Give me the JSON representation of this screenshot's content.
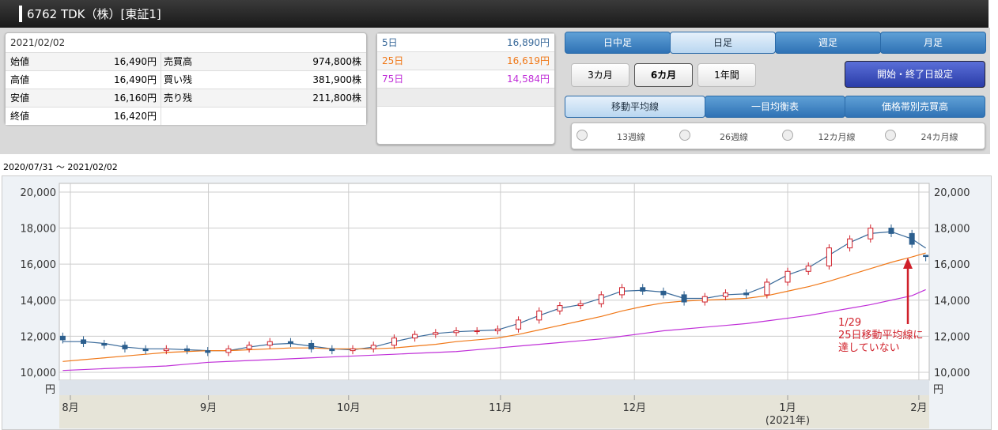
{
  "header": {
    "title": "6762 TDK（株）[東証1]"
  },
  "quote": {
    "date": "2021/02/02",
    "rows": [
      [
        "始値",
        "16,490円",
        "売買高",
        "974,800株"
      ],
      [
        "高値",
        "16,490円",
        "買い残",
        "381,900株"
      ],
      [
        "安値",
        "16,160円",
        "売り残",
        "211,800株"
      ],
      [
        "終値",
        "16,420円"
      ]
    ]
  },
  "tabs": [
    "日中足",
    "日足",
    "週足",
    "月足"
  ],
  "periods": [
    "3カ月",
    "6カ月",
    "1年間"
  ],
  "range_button": "開始・終了日設定",
  "indicator_tabs": [
    "移動平均線",
    "一目均衡表",
    "価格帯別売買高"
  ],
  "checks": [
    "13週線",
    "26週線",
    "12カ月線",
    "24カ月線"
  ],
  "range": "2020/07/31 〜 2021/02/02",
  "chart_data": {
    "type": "candlestick",
    "x": [
      0,
      3,
      6,
      9,
      12,
      15,
      18,
      21,
      24,
      27,
      30,
      33,
      36,
      39,
      42,
      45,
      48,
      51,
      54,
      57,
      60,
      63,
      66,
      69,
      72,
      75,
      78,
      81,
      84,
      87,
      90,
      93,
      96,
      99,
      102,
      105,
      108,
      111,
      114,
      117,
      120,
      123,
      125
    ],
    "open": [
      12000,
      11800,
      11600,
      11500,
      11300,
      11200,
      11300,
      11200,
      11100,
      11300,
      11500,
      11700,
      11600,
      11300,
      11200,
      11300,
      11500,
      11900,
      12100,
      12200,
      12300,
      12300,
      12400,
      12900,
      13400,
      13700,
      13800,
      14300,
      14700,
      14500,
      14300,
      13900,
      14200,
      14400,
      14300,
      15000,
      15600,
      15900,
      16900,
      17400,
      18000,
      17700,
      16490
    ],
    "high": [
      12200,
      12000,
      11800,
      11700,
      11500,
      11500,
      11500,
      11400,
      11500,
      11700,
      11900,
      11900,
      11800,
      11500,
      11500,
      11700,
      12100,
      12300,
      12400,
      12500,
      12500,
      12600,
      13100,
      13600,
      13900,
      14000,
      14500,
      14900,
      14900,
      14700,
      14500,
      14400,
      14600,
      14600,
      15200,
      15800,
      16100,
      17100,
      17600,
      18200,
      18200,
      17900,
      16490
    ],
    "low": [
      11600,
      11400,
      11300,
      11100,
      11000,
      11000,
      11000,
      10900,
      10900,
      11100,
      11300,
      11400,
      11100,
      11000,
      11000,
      11100,
      11300,
      11700,
      11900,
      12000,
      12100,
      12100,
      12200,
      12700,
      13200,
      13500,
      13600,
      14100,
      14300,
      14100,
      13700,
      13700,
      14000,
      14100,
      14100,
      14800,
      15400,
      15700,
      16700,
      17200,
      17500,
      16900,
      16160
    ],
    "close": [
      11800,
      11600,
      11500,
      11300,
      11200,
      11300,
      11200,
      11100,
      11300,
      11500,
      11700,
      11600,
      11300,
      11200,
      11300,
      11500,
      11900,
      12100,
      12200,
      12300,
      12300,
      12400,
      12900,
      13400,
      13700,
      13800,
      14300,
      14700,
      14500,
      14300,
      13900,
      14200,
      14400,
      14300,
      15000,
      15600,
      15900,
      16900,
      17400,
      18000,
      17700,
      17100,
      16420
    ],
    "up_color": "#d0202a",
    "down_color": "#2c5f8e",
    "series": [
      {
        "name": "5日",
        "color": "#3a6a9a",
        "last_label": "16,890円",
        "values": [
          11700,
          11700,
          11600,
          11400,
          11300,
          11300,
          11250,
          11200,
          11200,
          11400,
          11550,
          11600,
          11450,
          11300,
          11250,
          11400,
          11700,
          11950,
          12150,
          12250,
          12300,
          12350,
          12700,
          13150,
          13550,
          13750,
          14100,
          14500,
          14550,
          14450,
          14100,
          14100,
          14300,
          14350,
          14800,
          15400,
          15800,
          16500,
          17200,
          17700,
          17800,
          17400,
          16890
        ]
      },
      {
        "name": "25日",
        "color": "#f07818",
        "last_label": "16,619円",
        "values": [
          10600,
          10700,
          10800,
          10900,
          11000,
          11100,
          11150,
          11200,
          11200,
          11250,
          11300,
          11350,
          11350,
          11300,
          11300,
          11300,
          11350,
          11450,
          11550,
          11700,
          11800,
          11900,
          12100,
          12350,
          12600,
          12850,
          13100,
          13400,
          13650,
          13850,
          13950,
          14000,
          14050,
          14100,
          14250,
          14500,
          14750,
          15050,
          15400,
          15750,
          16100,
          16400,
          16619
        ]
      },
      {
        "name": "75日",
        "color": "#c030d8",
        "last_label": "14,584円",
        "values": [
          10100,
          10150,
          10200,
          10250,
          10300,
          10350,
          10450,
          10550,
          10600,
          10650,
          10700,
          10750,
          10800,
          10850,
          10900,
          10950,
          11000,
          11050,
          11100,
          11150,
          11250,
          11350,
          11450,
          11550,
          11650,
          11750,
          11850,
          12000,
          12150,
          12300,
          12400,
          12500,
          12600,
          12700,
          12850,
          13000,
          13150,
          13350,
          13550,
          13750,
          14000,
          14250,
          14584
        ]
      }
    ],
    "xlim": [
      -0.5,
      125.5
    ],
    "xticks": [
      {
        "value": 1.1,
        "label": "8月"
      },
      {
        "value": 21.1,
        "label": "9月"
      },
      {
        "value": 41.4,
        "label": "10月"
      },
      {
        "value": 63.4,
        "label": "11月"
      },
      {
        "value": 82.8,
        "label": "12月"
      },
      {
        "value": 105,
        "label": "1月"
      },
      {
        "value": 124,
        "label": "2月"
      }
    ],
    "year_label": "(2021年)",
    "ylim": [
      9560,
      20480
    ],
    "yticks": [
      {
        "value": 10000,
        "label": "10,000"
      },
      {
        "value": 12000,
        "label": "12,000"
      },
      {
        "value": 14000,
        "label": "14,000"
      },
      {
        "value": 16000,
        "label": "16,000"
      },
      {
        "value": 18000,
        "label": "18,000"
      },
      {
        "value": 20000,
        "label": "20,000"
      }
    ],
    "y_unit": "円",
    "grid": true,
    "annotation": [
      "1/29",
      "25日移動平均線に",
      "達していない"
    ],
    "annotation_color": "#d0202a"
  }
}
